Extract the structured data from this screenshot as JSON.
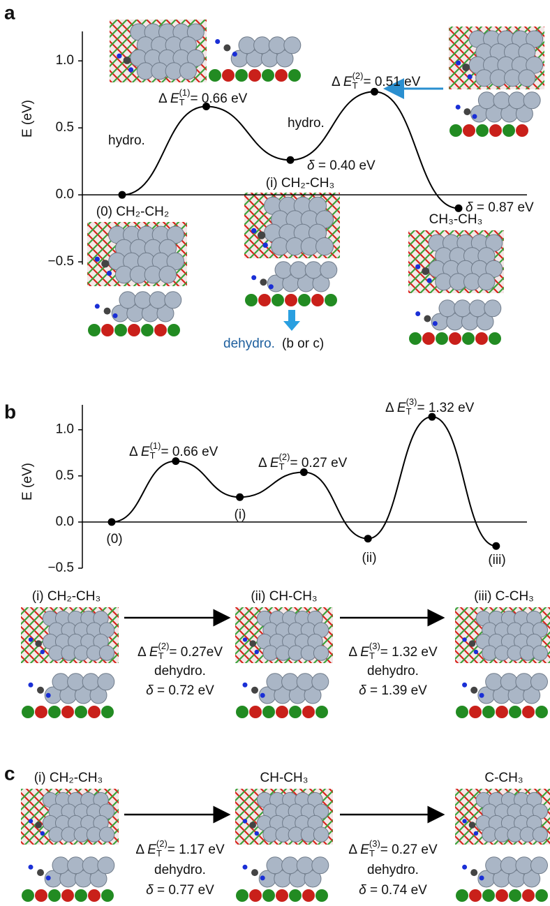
{
  "chart_data": [
    {
      "type": "line",
      "panel": "a",
      "ylabel": "E (eV)",
      "ylim": [
        -0.52,
        1.22
      ],
      "yticks": [
        {
          "value": -0.5,
          "label": "−0.5"
        },
        {
          "value": 0,
          "label": "0.0"
        },
        {
          "value": 0.5,
          "label": "0.5"
        },
        {
          "value": 1,
          "label": "1.0"
        }
      ],
      "categories": [
        "(0) CH₂-CH₂",
        null,
        "(i) CH₂-CH₃",
        null,
        "CH₃-CH₃"
      ],
      "values": [
        0,
        0.66,
        0.26,
        0.77,
        -0.1
      ],
      "color": "#000000",
      "annotations": [
        {
          "parts": [
            "Δ ",
            "E",
            "T",
            "(1)",
            "= 0.66 eV"
          ]
        },
        {
          "parts": [
            "Δ ",
            "E",
            "T",
            "(2)",
            "= 0.51 eV"
          ]
        },
        {
          "parts": [
            "hydro."
          ]
        },
        {
          "parts": [
            "hydro."
          ]
        },
        {
          "parts": [
            "δ",
            " = 0.40 eV"
          ]
        },
        {
          "parts": [
            "δ",
            " = 0.87 eV"
          ]
        },
        {
          "parts": [
            "dehydro."
          ]
        },
        {
          "parts": [
            "(b or c)"
          ]
        }
      ]
    },
    {
      "type": "line",
      "panel": "b",
      "ylabel": "E (eV)",
      "ylim": [
        -0.5,
        1.27
      ],
      "yticks": [
        {
          "value": -0.5,
          "label": "−0.5"
        },
        {
          "value": 0,
          "label": "0.0"
        },
        {
          "value": 0.5,
          "label": "0.5"
        },
        {
          "value": 1,
          "label": "1.0"
        }
      ],
      "categories": [
        "(0)",
        null,
        "(i)",
        null,
        "(ii)",
        null,
        "(iii)"
      ],
      "values": [
        0,
        0.66,
        0.27,
        0.54,
        -0.18,
        1.14,
        -0.26
      ],
      "color": "#000000",
      "annotations": [
        {
          "parts": [
            "Δ ",
            "E",
            "T",
            "(1)",
            "= 0.66 eV"
          ]
        },
        {
          "parts": [
            "Δ ",
            "E",
            "T",
            "(2)",
            "= 0.27 eV"
          ]
        },
        {
          "parts": [
            "Δ ",
            "E",
            "T",
            "(3)",
            "= 1.32 eV"
          ]
        }
      ]
    }
  ],
  "scheme_b": {
    "states": [
      "(i) CH₂-CH₃",
      "(ii) CH-CH₃",
      "(iii) C-CH₃"
    ],
    "steps": [
      {
        "barrier": [
          "Δ ",
          "E",
          "T",
          "(2)",
          "= 0.27eV"
        ],
        "process": "dehydro.",
        "delta": [
          "δ",
          " = 0.72 eV"
        ]
      },
      {
        "barrier": [
          "Δ ",
          "E",
          "T",
          "(3)",
          "= 1.32 eV"
        ],
        "process": "dehydro.",
        "delta": [
          "δ",
          " = 1.39 eV"
        ]
      }
    ]
  },
  "panel_c": {
    "label": "c",
    "states": [
      "(i) CH₂-CH₃",
      "CH-CH₃",
      "C-CH₃"
    ],
    "steps": [
      {
        "barrier": [
          "Δ ",
          "E",
          "T",
          "(2)",
          "= 1.17 eV"
        ],
        "process": "dehydro.",
        "delta": [
          "δ",
          " = 0.77 eV"
        ]
      },
      {
        "barrier": [
          "Δ ",
          "E",
          "T",
          "(3)",
          "= 0.27 eV"
        ],
        "process": "dehydro.",
        "delta": [
          "δ",
          " = 0.74 eV"
        ]
      }
    ]
  }
}
